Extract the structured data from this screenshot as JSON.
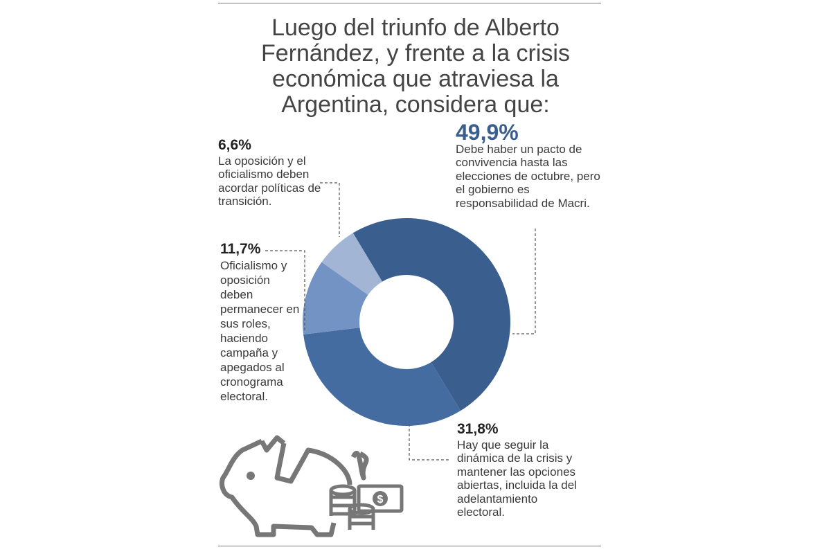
{
  "title": "Luego del triunfo de Alberto Fernández, y frente a la crisis económica que atraviesa la Argentina, considera que:",
  "chart_data": {
    "type": "pie",
    "title": "Luego del triunfo de Alberto Fernández, y frente a la crisis económica que atraviesa la Argentina, considera que:",
    "slices": [
      {
        "label": "49,9%",
        "value": 49.9,
        "text": "Debe haber un pacto de convivencia hasta las elecciones de octubre, pero el gobierno es responsabilidad de Macri.",
        "color": "#3a5f8e"
      },
      {
        "label": "31,8%",
        "value": 31.8,
        "text": "Hay que seguir la dinámica de la crisis y mantener las opciones abiertas, incluida la del adelantamiento electoral.",
        "color": "#456ca0"
      },
      {
        "label": "11,7%",
        "value": 11.7,
        "text": "Oficialismo y oposición deben permanecer en sus roles, haciendo campaña y apegados al cronograma electoral.",
        "color": "#7393c4"
      },
      {
        "label": "6,6%",
        "value": 6.6,
        "text": "La oposición y el oficialismo deben acordar políticas de transición.",
        "color": "#a3b5d4"
      }
    ]
  },
  "icon": "piggy-bank-broken-with-coins-and-cash-icon"
}
